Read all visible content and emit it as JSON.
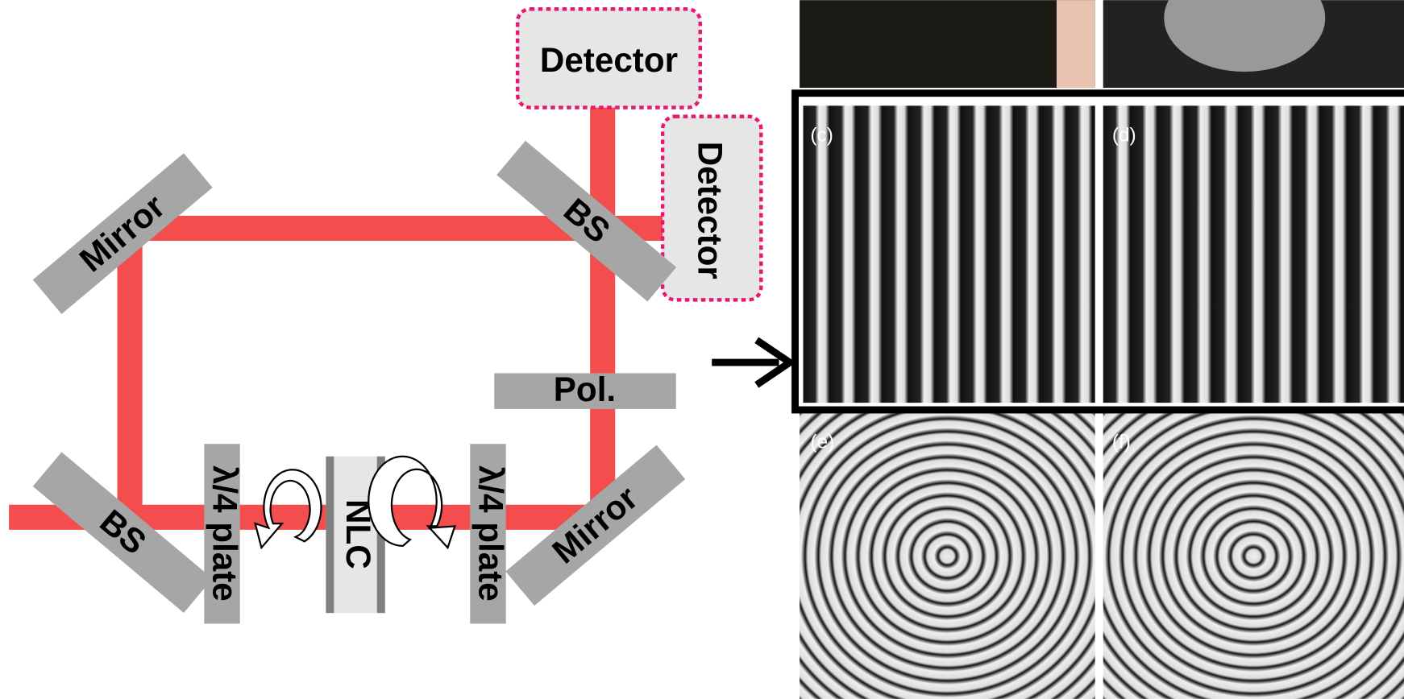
{
  "detectors": [
    "Detector",
    "Detector"
  ],
  "components": {
    "mirror_top": "Mirror",
    "bs_top": "BS",
    "bs_bottom": "BS",
    "mirror_bottom": "Mirror",
    "polarizer": "Pol.",
    "plate_left": "λ/4 plate",
    "nlc": "NLC",
    "plate_right": "λ/4 plate"
  },
  "panels": [
    "(c)",
    "(d)",
    "(e)",
    "(f)"
  ]
}
